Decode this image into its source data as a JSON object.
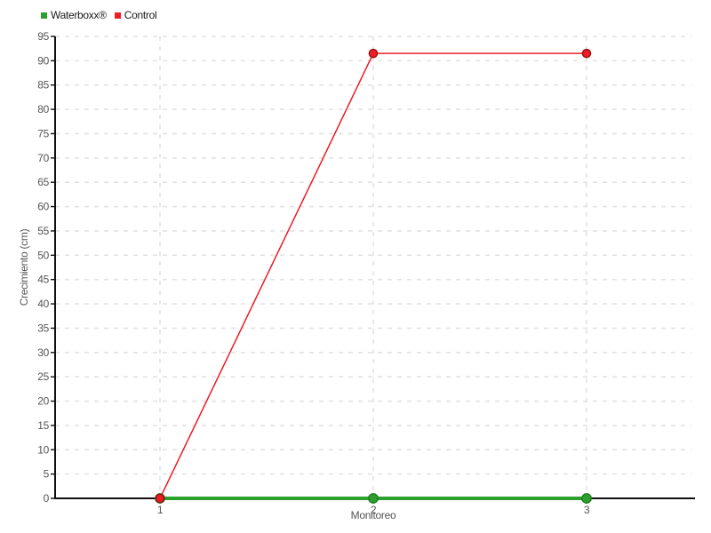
{
  "chart_data": {
    "type": "line",
    "categories": [
      "1",
      "2",
      "3"
    ],
    "series": [
      {
        "name": "Waterboxx®",
        "color": "#2ca02c",
        "point_stroke": "#1e7a1e",
        "values": [
          0,
          0,
          0
        ]
      },
      {
        "name": "Control",
        "color": "#ee1c25",
        "point_stroke": "#9b1016",
        "values": [
          0,
          91.5,
          91.5
        ]
      }
    ],
    "xlabel": "Monitoreo",
    "ylabel": "Crecimiento (cm)",
    "ylim": [
      0,
      95
    ],
    "ytick_step": 5,
    "grid": "dashed",
    "legend_position": "top-left",
    "colors": {
      "grid": "#e2e2e2",
      "axis": "#111111",
      "tick_label": "#555555",
      "axis_title": "#555555",
      "legend_text": "#1a1a1a",
      "background": "#ffffff"
    }
  }
}
